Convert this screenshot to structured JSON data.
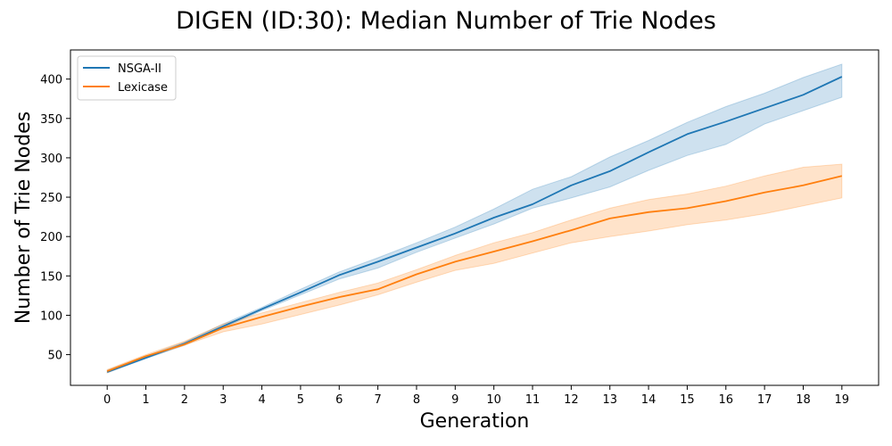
{
  "chart_data": {
    "type": "line",
    "title": "DIGEN (ID:30): Median Number of Trie Nodes",
    "xlabel": "Generation",
    "ylabel": "Number of Trie Nodes",
    "x": [
      0,
      1,
      2,
      3,
      4,
      5,
      6,
      7,
      8,
      9,
      10,
      11,
      12,
      13,
      14,
      15,
      16,
      17,
      18,
      19
    ],
    "xlim": [
      -0.95,
      19.95
    ],
    "ylim": [
      11,
      437
    ],
    "yticks": [
      50,
      100,
      150,
      200,
      250,
      300,
      350,
      400
    ],
    "grid": false,
    "legend_position": "top-left",
    "series": [
      {
        "name": "NSGA-II",
        "color": "#1f77b4",
        "values": [
          28,
          46,
          64,
          86,
          108,
          129,
          151,
          168,
          186,
          204,
          224,
          241,
          265,
          283,
          307,
          330,
          346,
          363,
          380,
          403
        ],
        "lower": [
          27,
          45,
          62,
          84,
          106,
          126,
          146,
          160,
          180,
          198,
          216,
          236,
          249,
          263,
          284,
          303,
          317,
          343,
          360,
          377
        ],
        "upper": [
          30,
          48,
          66,
          89,
          110,
          133,
          155,
          173,
          192,
          212,
          235,
          260,
          276,
          301,
          322,
          345,
          365,
          382,
          402,
          419
        ]
      },
      {
        "name": "Lexicase",
        "color": "#ff7f0e",
        "values": [
          29,
          48,
          63,
          84,
          98,
          111,
          123,
          133,
          152,
          168,
          181,
          194,
          208,
          223,
          231,
          236,
          245,
          256,
          265,
          277
        ],
        "lower": [
          27,
          46,
          62,
          79,
          89,
          101,
          113,
          126,
          142,
          157,
          166,
          179,
          192,
          200,
          207,
          215,
          221,
          229,
          239,
          249
        ],
        "upper": [
          31,
          50,
          67,
          89,
          103,
          116,
          129,
          141,
          158,
          176,
          192,
          205,
          221,
          236,
          247,
          254,
          264,
          277,
          288,
          292
        ]
      }
    ]
  }
}
